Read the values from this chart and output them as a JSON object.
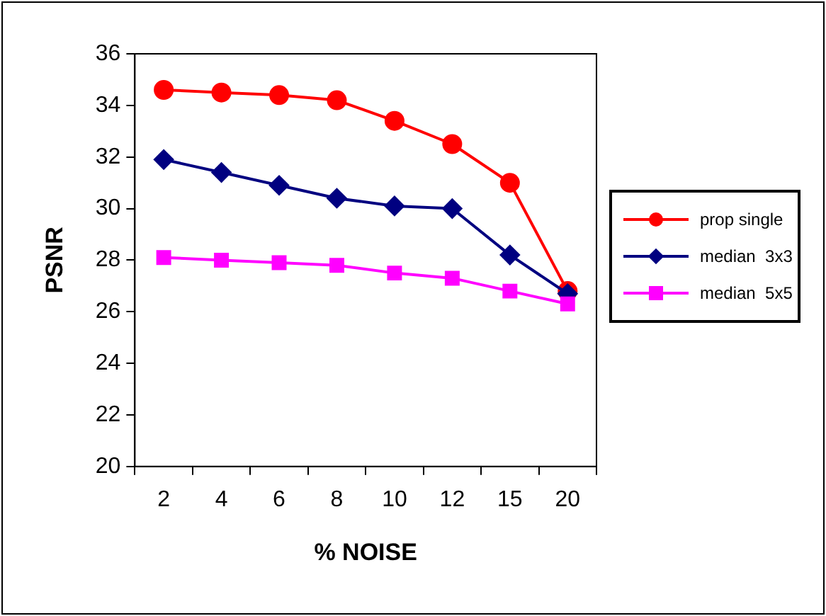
{
  "chart_data": {
    "type": "line",
    "xlabel": "% NOISE",
    "ylabel": "PSNR",
    "categories": [
      "2",
      "4",
      "6",
      "8",
      "10",
      "12",
      "15",
      "20"
    ],
    "series": [
      {
        "name": "prop single",
        "color": "#ff0000",
        "marker": "circle",
        "values": [
          34.6,
          34.5,
          34.4,
          34.2,
          33.4,
          32.5,
          31.0,
          26.8
        ]
      },
      {
        "name": "median  3x3",
        "color": "#000080",
        "marker": "diamond",
        "values": [
          31.9,
          31.4,
          30.9,
          30.4,
          30.1,
          30.0,
          28.2,
          26.7
        ]
      },
      {
        "name": "median  5x5",
        "color": "#ff00ff",
        "marker": "square",
        "values": [
          28.1,
          28.0,
          27.9,
          27.8,
          27.5,
          27.3,
          26.8,
          26.3
        ]
      }
    ],
    "ylim": [
      20,
      36
    ],
    "yticks": [
      20,
      22,
      24,
      26,
      28,
      30,
      32,
      34,
      36
    ],
    "grid": false,
    "legend": "right"
  }
}
